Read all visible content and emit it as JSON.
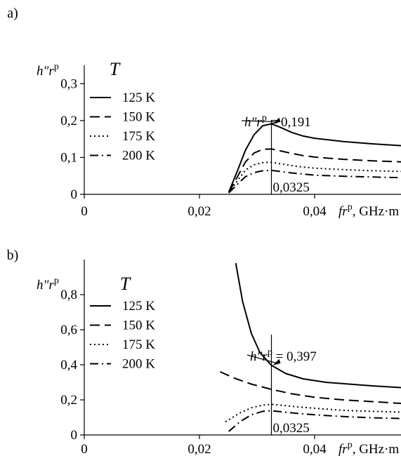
{
  "chart_data": [
    {
      "panel_label": "a)",
      "type": "line",
      "legend_title": "T",
      "ylabel": {
        "base": "h″r",
        "sup": "p"
      },
      "xlabel": {
        "base": "fr",
        "sup": "p",
        "units": ", GHz·m"
      },
      "xlim": [
        0,
        0.055
      ],
      "ylim": [
        0,
        0.35
      ],
      "xticks": [
        {
          "value": 0,
          "label": "0"
        },
        {
          "value": 0.02,
          "label": "0,02"
        },
        {
          "value": 0.04,
          "label": "0,04"
        }
      ],
      "yticks": [
        {
          "value": 0,
          "label": "0"
        },
        {
          "value": 0.1,
          "label": "0,1"
        },
        {
          "value": 0.2,
          "label": "0,2"
        },
        {
          "value": 0.3,
          "label": "0,3"
        }
      ],
      "vline": {
        "x": 0.0325,
        "label": "0,0325"
      },
      "annotation": {
        "text_base": "h″r",
        "text_sup": "p",
        "text_value": " = 0,191",
        "x": 0.0325,
        "y": 0.191
      },
      "series": [
        {
          "name": "125 K",
          "dash": "solid",
          "x": [
            0.0251,
            0.0265,
            0.028,
            0.0295,
            0.031,
            0.0325,
            0.034,
            0.036,
            0.038,
            0.04,
            0.045,
            0.05,
            0.055
          ],
          "y": [
            0.006,
            0.06,
            0.12,
            0.162,
            0.186,
            0.191,
            0.182,
            0.168,
            0.158,
            0.152,
            0.143,
            0.137,
            0.132
          ]
        },
        {
          "name": "150 K",
          "dash": "dash",
          "x": [
            0.0251,
            0.0265,
            0.028,
            0.0295,
            0.031,
            0.0325,
            0.034,
            0.036,
            0.038,
            0.04,
            0.045,
            0.05,
            0.055
          ],
          "y": [
            0.005,
            0.045,
            0.088,
            0.112,
            0.122,
            0.123,
            0.118,
            0.111,
            0.105,
            0.101,
            0.095,
            0.091,
            0.088
          ]
        },
        {
          "name": "175 K",
          "dash": "dot",
          "x": [
            0.0251,
            0.0265,
            0.028,
            0.0295,
            0.031,
            0.0325,
            0.034,
            0.036,
            0.038,
            0.04,
            0.045,
            0.05,
            0.055
          ],
          "y": [
            0.005,
            0.035,
            0.066,
            0.08,
            0.086,
            0.087,
            0.083,
            0.078,
            0.074,
            0.071,
            0.067,
            0.064,
            0.062
          ]
        },
        {
          "name": "200 K",
          "dash": "dashdot",
          "x": [
            0.0251,
            0.0265,
            0.028,
            0.0295,
            0.031,
            0.0325,
            0.034,
            0.036,
            0.038,
            0.04,
            0.045,
            0.05,
            0.055
          ],
          "y": [
            0.004,
            0.026,
            0.048,
            0.059,
            0.064,
            0.065,
            0.062,
            0.058,
            0.055,
            0.052,
            0.049,
            0.047,
            0.045
          ]
        }
      ]
    },
    {
      "panel_label": "b)",
      "type": "line",
      "legend_title": "T",
      "ylabel": {
        "base": "h″r",
        "sup": "p"
      },
      "xlabel": {
        "base": "fr",
        "sup": "p",
        "units": ", GHz·m"
      },
      "xlim": [
        0,
        0.055
      ],
      "ylim": [
        0,
        1.0
      ],
      "xticks": [
        {
          "value": 0,
          "label": "0"
        },
        {
          "value": 0.02,
          "label": "0,02"
        },
        {
          "value": 0.04,
          "label": "0,04"
        }
      ],
      "yticks": [
        {
          "value": 0,
          "label": "0"
        },
        {
          "value": 0.2,
          "label": "0,2"
        },
        {
          "value": 0.4,
          "label": "0,4"
        },
        {
          "value": 0.6,
          "label": "0,6"
        },
        {
          "value": 0.8,
          "label": "0,8"
        }
      ],
      "vline": {
        "x": 0.0325,
        "label": "0,0325"
      },
      "annotation": {
        "text_base": "h″r",
        "text_sup": "p",
        "text_value": " = 0,397",
        "x": 0.0325,
        "y": 0.397
      },
      "series": [
        {
          "name": "125 K",
          "dash": "solid",
          "x": [
            0.0263,
            0.0275,
            0.029,
            0.0305,
            0.0325,
            0.035,
            0.038,
            0.042,
            0.046,
            0.05,
            0.055
          ],
          "y": [
            0.98,
            0.76,
            0.58,
            0.47,
            0.397,
            0.35,
            0.32,
            0.3,
            0.29,
            0.28,
            0.27
          ]
        },
        {
          "name": "150 K",
          "dash": "dash",
          "x": [
            0.0236,
            0.026,
            0.029,
            0.0325,
            0.036,
            0.04,
            0.045,
            0.05,
            0.055
          ],
          "y": [
            0.36,
            0.325,
            0.29,
            0.26,
            0.235,
            0.215,
            0.2,
            0.19,
            0.18
          ]
        },
        {
          "name": "175 K",
          "dash": "dot",
          "x": [
            0.0245,
            0.027,
            0.029,
            0.031,
            0.0325,
            0.034,
            0.037,
            0.041,
            0.045,
            0.05,
            0.055
          ],
          "y": [
            0.075,
            0.125,
            0.155,
            0.17,
            0.175,
            0.17,
            0.16,
            0.15,
            0.14,
            0.135,
            0.13
          ]
        },
        {
          "name": "200 K",
          "dash": "dashdot",
          "x": [
            0.0251,
            0.027,
            0.029,
            0.031,
            0.0325,
            0.034,
            0.037,
            0.041,
            0.045,
            0.05,
            0.055
          ],
          "y": [
            0.02,
            0.075,
            0.115,
            0.135,
            0.138,
            0.133,
            0.123,
            0.113,
            0.105,
            0.098,
            0.094
          ]
        }
      ]
    }
  ]
}
